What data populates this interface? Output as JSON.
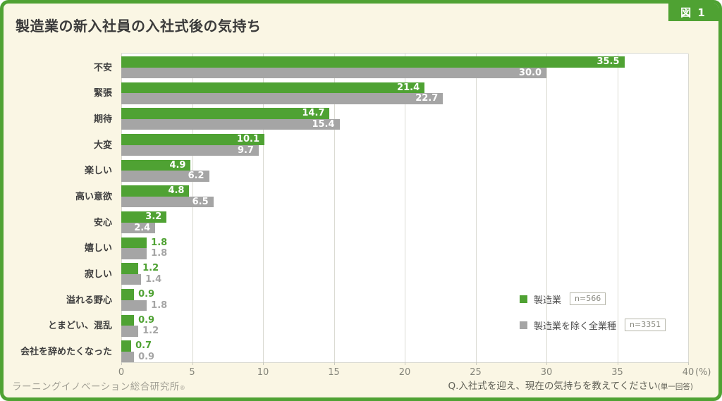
{
  "figure_tag": "図 1",
  "title": "製造業の新入社員の入社式後の気持ち",
  "chart_data": {
    "type": "bar",
    "orientation": "horizontal",
    "title": "製造業の新入社員の入社式後の気持ち",
    "categories": [
      "不安",
      "緊張",
      "期待",
      "大変",
      "楽しい",
      "高い意欲",
      "安心",
      "嬉しい",
      "寂しい",
      "溢れる野心",
      "とまどい、混乱",
      "会社を辞めたくなった"
    ],
    "series": [
      {
        "name": "製造業",
        "n_label": "n=566",
        "color": "#4fa233",
        "values": [
          35.5,
          21.4,
          14.7,
          10.1,
          4.9,
          4.8,
          3.2,
          1.8,
          1.2,
          0.9,
          0.9,
          0.7
        ]
      },
      {
        "name": "製造業を除く全業種",
        "n_label": "n=3351",
        "color": "#a5a5a5",
        "values": [
          30.0,
          22.7,
          15.4,
          9.7,
          6.2,
          6.5,
          2.4,
          1.8,
          1.4,
          1.8,
          1.2,
          0.9
        ]
      }
    ],
    "xlim": [
      0,
      40
    ],
    "xticks": [
      0,
      5,
      10,
      15,
      20,
      25,
      30,
      35,
      40
    ],
    "x_unit": "(%)",
    "grid": true,
    "legend_position": "inside-right-bottom",
    "value_label_inside_threshold": 2.0,
    "value_decimals": 1
  },
  "footer": {
    "source": "ラーニングイノベーション総合研究所",
    "source_mark": "®",
    "question": "Q.入社式を迎え、現在の気持ちを教えてください",
    "question_note": "(単一回答)"
  },
  "colors": {
    "frame_green": "#4fa233",
    "bar_green": "#4fa233",
    "bar_gray": "#a5a5a5",
    "background": "#faf6e4",
    "plot_background": "#ffffff",
    "gridline": "#dadad2",
    "tick_text": "#85857a",
    "category_text": "#3e3e3e"
  }
}
